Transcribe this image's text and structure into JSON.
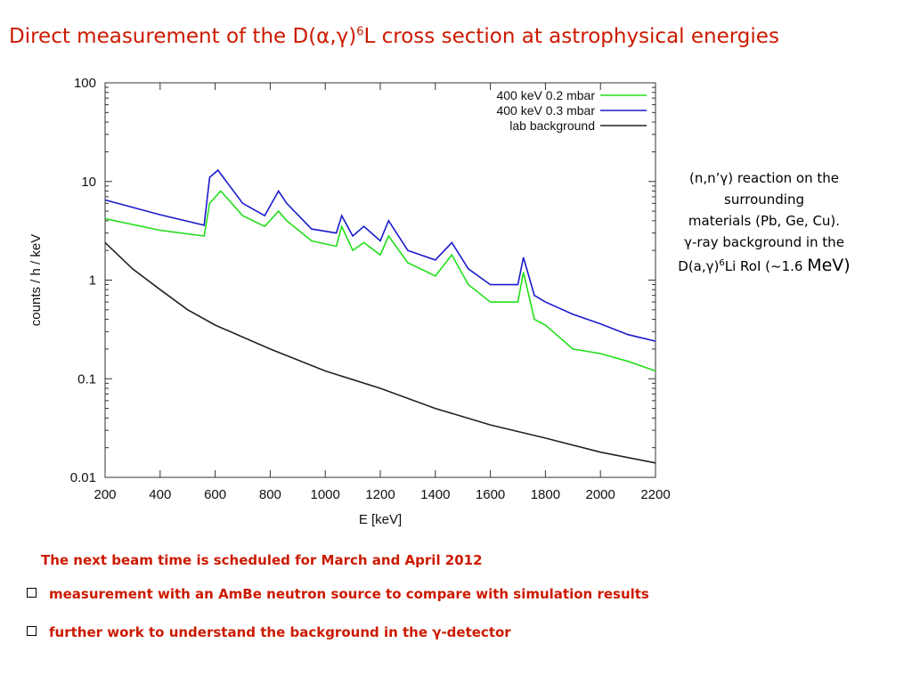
{
  "slide": {
    "title_prefix": "Direct measurement of the D(α,γ)",
    "title_sup": "6",
    "title_suffix": "L cross section at astrophysical energies",
    "note_line1": "(n,n’γ) reaction on the",
    "note_line2": "surrounding",
    "note_line3": "materials (Pb, Ge, Cu).",
    "note_line4": "γ-ray background in the",
    "note_line5a": "D(a,γ)",
    "note_line5sup": "6",
    "note_line5b": "Li RoI (~1.6 ",
    "note_line5c": "MeV)",
    "next_beam": "The next beam time is scheduled for March and April 2012",
    "bullets": [
      "measurement with an AmBe neutron source to compare with simulation results",
      "further work to understand the background in the γ-detector"
    ]
  },
  "chart_data": {
    "type": "line",
    "xlabel": "E [keV]",
    "ylabel": "counts / h / keV",
    "xlim": [
      200,
      2200
    ],
    "ylim": [
      0.01,
      100
    ],
    "y_scale": "log",
    "x_ticks": [
      "200",
      "400",
      "600",
      "800",
      "1000",
      "1200",
      "1400",
      "1600",
      "1800",
      "2000",
      "2200"
    ],
    "y_ticks": [
      "0.01",
      "0.1",
      "1",
      "10",
      "100"
    ],
    "legend_position": "top-right",
    "series": [
      {
        "name": "400 keV 0.2 mbar",
        "color": "#22e01a",
        "points": [
          [
            200,
            4.2
          ],
          [
            400,
            3.2
          ],
          [
            560,
            2.8
          ],
          [
            580,
            6
          ],
          [
            620,
            8
          ],
          [
            700,
            4.5
          ],
          [
            780,
            3.5
          ],
          [
            830,
            5
          ],
          [
            860,
            4
          ],
          [
            950,
            2.5
          ],
          [
            1040,
            2.2
          ],
          [
            1060,
            3.5
          ],
          [
            1100,
            2
          ],
          [
            1140,
            2.4
          ],
          [
            1200,
            1.8
          ],
          [
            1230,
            2.8
          ],
          [
            1300,
            1.5
          ],
          [
            1400,
            1.1
          ],
          [
            1460,
            1.8
          ],
          [
            1520,
            0.9
          ],
          [
            1600,
            0.6
          ],
          [
            1700,
            0.6
          ],
          [
            1720,
            1.2
          ],
          [
            1760,
            0.4
          ],
          [
            1800,
            0.35
          ],
          [
            1900,
            0.2
          ],
          [
            2000,
            0.18
          ],
          [
            2100,
            0.15
          ],
          [
            2200,
            0.12
          ]
        ]
      },
      {
        "name": "400 keV 0.3 mbar",
        "color": "#1a1acc",
        "points": [
          [
            200,
            6.5
          ],
          [
            400,
            4.6
          ],
          [
            560,
            3.6
          ],
          [
            580,
            11
          ],
          [
            610,
            13
          ],
          [
            700,
            6
          ],
          [
            780,
            4.5
          ],
          [
            830,
            8
          ],
          [
            860,
            6
          ],
          [
            950,
            3.3
          ],
          [
            1040,
            3
          ],
          [
            1060,
            4.5
          ],
          [
            1100,
            2.8
          ],
          [
            1140,
            3.5
          ],
          [
            1200,
            2.5
          ],
          [
            1230,
            4
          ],
          [
            1300,
            2
          ],
          [
            1400,
            1.6
          ],
          [
            1460,
            2.4
          ],
          [
            1520,
            1.3
          ],
          [
            1600,
            0.9
          ],
          [
            1700,
            0.9
          ],
          [
            1720,
            1.7
          ],
          [
            1760,
            0.7
          ],
          [
            1800,
            0.6
          ],
          [
            1900,
            0.45
          ],
          [
            2000,
            0.36
          ],
          [
            2100,
            0.28
          ],
          [
            2200,
            0.24
          ]
        ]
      },
      {
        "name": "lab background",
        "color": "#222222",
        "points": [
          [
            200,
            2.4
          ],
          [
            300,
            1.3
          ],
          [
            400,
            0.8
          ],
          [
            500,
            0.5
          ],
          [
            600,
            0.35
          ],
          [
            800,
            0.2
          ],
          [
            1000,
            0.12
          ],
          [
            1200,
            0.08
          ],
          [
            1400,
            0.05
          ],
          [
            1600,
            0.034
          ],
          [
            1800,
            0.025
          ],
          [
            2000,
            0.018
          ],
          [
            2200,
            0.014
          ]
        ]
      }
    ]
  }
}
